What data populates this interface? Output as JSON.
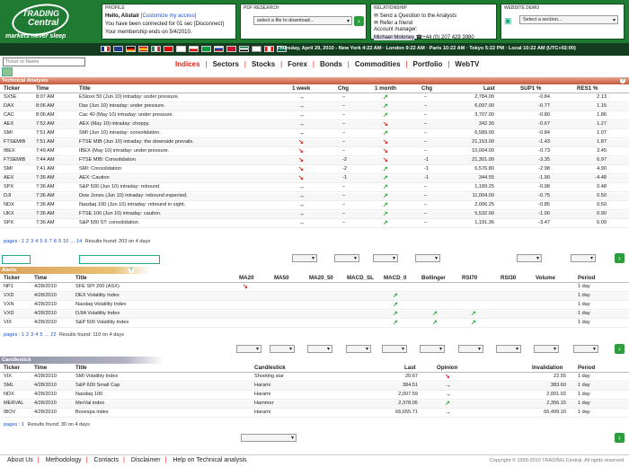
{
  "logo": {
    "line1": "TRADING",
    "line2": "Central",
    "tagline": "markets never sleep"
  },
  "profile": {
    "title": "PROFILE",
    "hello": "Hello, Alistair",
    "customize": "[Customize my access]",
    "connected": "You have been connected for 01 sec [Disconnect]",
    "membership": "Your membership ends on 5/4/2010."
  },
  "pdf": {
    "title": "PDF RESEARCH",
    "select": "select a file to download..."
  },
  "relationship": {
    "title": "RELATIONSHIP",
    "q": "Send a Question to the Analysts",
    "friend": "Refer a friend",
    "am_label": "Account manager:",
    "am_name": "Michael Moloney",
    "phone": "+44 (0) 207 429 3980"
  },
  "demo": {
    "title": "WEBSITE DEMO",
    "select": "Select a section..."
  },
  "timeline": "Thursday, April 29, 2010  -  New York 4:22 AM  ·  London 9:22 AM  ·  Paris 10:22 AM  ·  Tokyo 5:22 PM  ·  Local 10:22 AM (UTC+02:00)",
  "ticker_placeholder": "Ticker or Name",
  "nav": [
    "Indices",
    "Sectors",
    "Stocks",
    "Forex",
    "Bonds",
    "Commodities",
    "Portfolio",
    "WebTV"
  ],
  "ta": {
    "title": "Technical Analysis",
    "headers": {
      "ticker": "Ticker",
      "time": "Time",
      "title": "Title",
      "week": "1 week",
      "chg": "Chg",
      "month": "1 month",
      "chg2": "Chg",
      "last": "Last",
      "sup": "SUP1 %",
      "res": "RES1 %"
    },
    "rows": [
      [
        "SX5E",
        "8:07 AM",
        "EStoxx 50 (Jun 10) intraday: under pressure.",
        "rt",
        "–",
        "up",
        "–",
        "2,784.00",
        "-0.84",
        "2.13"
      ],
      [
        "DAX",
        "8:06 AM",
        "Dax (Jun 10) intraday: under pressure.",
        "rt",
        "–",
        "up",
        "–",
        "6,097.00",
        "-0.77",
        "1.15"
      ],
      [
        "CAC",
        "8:06 AM",
        "Cac 40 (May 10) intraday: under pressure.",
        "rt",
        "–",
        "up",
        "–",
        "3,707.00",
        "-0.80",
        "1.86"
      ],
      [
        "AEX",
        "7:52 AM",
        "AEX (May 10) intraday: choppy.",
        "rt",
        "–",
        "dn",
        "–",
        "342.30",
        "-0.67",
        "1.27"
      ],
      [
        "SMI",
        "7:51 AM",
        "SMI (Jun 10) intraday: consolidation.",
        "rt",
        "–",
        "up",
        "–",
        "6,589.00",
        "-0.84",
        "1.07"
      ],
      [
        "FTSEMIB",
        "7:51 AM",
        "FTSE MIB (Jun 10) intraday: the downside prevails.",
        "dn",
        "–",
        "dn",
        "–",
        "21,153.00",
        "-1.43",
        "1.87"
      ],
      [
        "IBEX",
        "7:49 AM",
        "IBEX (May 10) intraday: under pressure.",
        "dn",
        "–",
        "dn",
        "–",
        "10,004.00",
        "-0.73",
        "3.45"
      ],
      [
        "FTSEMIB",
        "7:44 AM",
        "FTSE MIB: Consolidation",
        "dn",
        "-2",
        "dn",
        "-1",
        "21,301.00",
        "-3.35",
        "6.97"
      ],
      [
        "SMI",
        "7:41 AM",
        "SMI: Consolidation",
        "dn",
        "-2",
        "up",
        "-1",
        "6,576.80",
        "-2.98",
        "4.90"
      ],
      [
        "AEX",
        "7:36 AM",
        "AEX: Caution",
        "dn",
        "-1",
        "up",
        "-1",
        "344.55",
        "-1.90",
        "-4.48"
      ],
      [
        "SPX",
        "7:36 AM",
        "S&P 500 (Jun 10) intraday: rebound.",
        "rt",
        "–",
        "up",
        "–",
        "1,189.25",
        "-0.98",
        "0.48"
      ],
      [
        "DJI",
        "7:36 AM",
        "Dow Jones (Jun 10) intraday: rebound expected.",
        "rt",
        "–",
        "up",
        "–",
        "11,004.00",
        "-0.75",
        "0.50"
      ],
      [
        "NDX",
        "7:36 AM",
        "Nasdaq 100 (Jun 10) intraday: rebound in sight.",
        "rt",
        "–",
        "up",
        "–",
        "2,006.25",
        "-0.85",
        "0.50"
      ],
      [
        "UKX",
        "7:36 AM",
        "FTSE 100 (Jun 10) intraday: caution.",
        "rt",
        "–",
        "up",
        "–",
        "5,532.00",
        "-1.00",
        "0.90"
      ],
      [
        "SPX",
        "7:36 AM",
        "S&P 500 ST: consolidation",
        "rt",
        "–",
        "up",
        "–",
        "1,191.36",
        "-3.47",
        "6.09"
      ]
    ],
    "pages": [
      "1",
      "2",
      "3",
      "4",
      "5",
      "6",
      "7",
      "8",
      "9",
      "10",
      "...",
      "14"
    ],
    "results": "Results found: 203 on 4 days"
  },
  "alerts": {
    "title": "Alerts",
    "headers": {
      "ticker": "Ticker",
      "time": "Time",
      "title": "Title",
      "ma20": "MA20",
      "ma50": "MA50",
      "ma20_50": "MA20_50",
      "macd_sl": "MACD_SL",
      "macd_0": "MACD_0",
      "bollinger": "Bollinger",
      "rsi70": "RSI70",
      "rsi30": "RSI30",
      "volume": "Volume",
      "period": "Period"
    },
    "rows": [
      [
        "NP1",
        "4/28/2010",
        "SFE SPI 200 (ASX)",
        "dn",
        "",
        "",
        "",
        "1 day"
      ],
      [
        "VXD",
        "4/28/2010",
        "DEX Volatility Index",
        "",
        "up",
        "",
        "",
        "1 day"
      ],
      [
        "VXN",
        "4/28/2010",
        "Nasdaq Volatility Index",
        "",
        "up",
        "",
        "",
        "1 day"
      ],
      [
        "VXD",
        "4/28/2010",
        "DJIA Volatility Index",
        "",
        "up",
        "up",
        "up",
        "1 day"
      ],
      [
        "VIX",
        "4/28/2010",
        "S&P 500 Volatility Index",
        "",
        "up",
        "up",
        "up",
        "1 day"
      ]
    ],
    "pages": [
      "1",
      "2",
      "3",
      "4",
      "5",
      "...",
      "22"
    ],
    "results": "Results found: 110 on 4 days"
  },
  "candles": {
    "title": "Candlestick",
    "headers": {
      "ticker": "Ticker",
      "time": "Time",
      "title": "Title",
      "candle": "Candlestick",
      "last": "Last",
      "opinion": "Opinion",
      "inval": "Invalidation",
      "period": "Period"
    },
    "rows": [
      [
        "VIX",
        "4/28/2010",
        "SMI Volatility Index",
        "Shooting star",
        "20.67",
        "dn",
        "22.55",
        "1 day"
      ],
      [
        "SML",
        "4/28/2010",
        "S&P 600 Small Cap",
        "Harami",
        "384.51",
        "rt",
        "383.60",
        "1 day"
      ],
      [
        "NDX",
        "4/28/2010",
        "Nasdaq 100",
        "Harami",
        "2,007.59",
        "rt",
        "2,001.02",
        "1 day"
      ],
      [
        "MERVAL",
        "4/28/2010",
        "MerVal index",
        "Hammer",
        "2,378.05",
        "up",
        "2,356.15",
        "1 day"
      ],
      [
        "IBOV",
        "4/28/2010",
        "Bovespa index",
        "Harami",
        "66,655.71",
        "rt",
        "66,499.10",
        "1 day"
      ]
    ],
    "results": "Results found: 30 on 4 days"
  },
  "footer": {
    "links": [
      "About Us",
      "Methodology",
      "Contacts",
      "Disclaimer",
      "Help on Technical analysis"
    ],
    "copyright": "Copyright © 1999-2010 TRADING Central. All rights reserved"
  },
  "colors": {
    "green": "#1f7a32",
    "red": "#e2231a",
    "up": "#2aa83a"
  }
}
